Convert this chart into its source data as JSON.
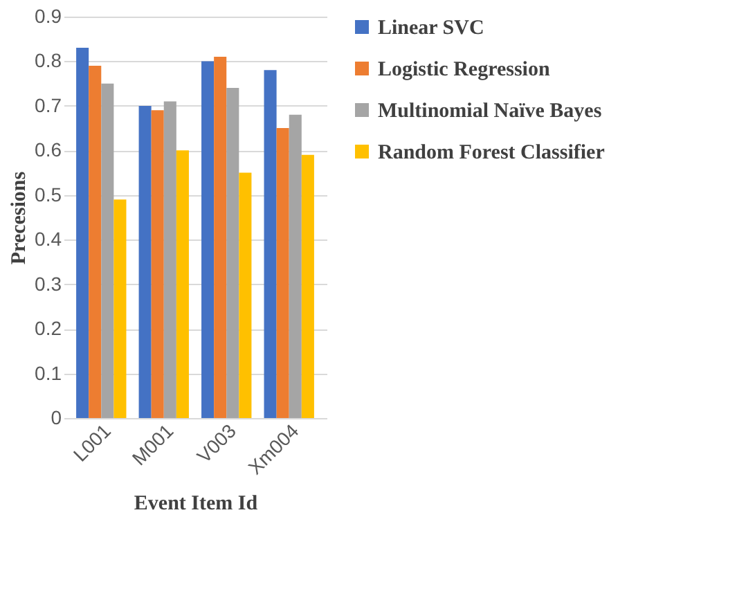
{
  "chart_data": {
    "type": "bar",
    "xlabel": "Event Item Id",
    "ylabel": "Precesions",
    "categories": [
      "L001",
      "M001",
      "V003",
      "Xm004"
    ],
    "series": [
      {
        "name": "Linear SVC",
        "color": "#4472c4",
        "values": [
          0.83,
          0.7,
          0.8,
          0.78
        ]
      },
      {
        "name": "Logistic Regression",
        "color": "#ed7d31",
        "values": [
          0.79,
          0.69,
          0.81,
          0.65
        ]
      },
      {
        "name": "Multinomial Naïve Bayes",
        "color": "#a5a5a5",
        "values": [
          0.75,
          0.71,
          0.74,
          0.68
        ]
      },
      {
        "name": "Random Forest Classifier",
        "color": "#ffc000",
        "values": [
          0.49,
          0.6,
          0.55,
          0.59
        ]
      }
    ],
    "ylim": [
      0,
      0.9
    ],
    "yticks": [
      0,
      0.1,
      0.2,
      0.3,
      0.4,
      0.5,
      0.6,
      0.7,
      0.8,
      0.9
    ],
    "grid": "y",
    "legend": "right"
  }
}
